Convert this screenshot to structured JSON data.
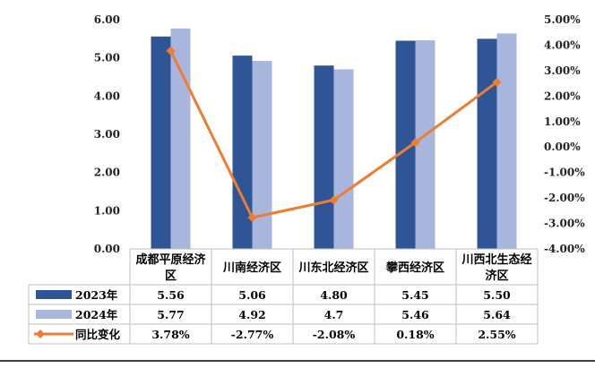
{
  "chart_data": {
    "type": "bar",
    "categories": [
      "成都平原经济区",
      "川南经济区",
      "川东北经济区",
      "攀西经济区",
      "川西北生态经济区"
    ],
    "series": [
      {
        "name": "2023年",
        "type": "bar",
        "axis": "left",
        "color": "#2F5597",
        "values": [
          5.56,
          5.06,
          4.8,
          5.45,
          5.5
        ],
        "value_labels": [
          "5.56",
          "5.06",
          "4.80",
          "5.45",
          "5.50"
        ]
      },
      {
        "name": "2024年",
        "type": "bar",
        "axis": "left",
        "color": "#A8B5DC",
        "values": [
          5.77,
          4.92,
          4.7,
          5.46,
          5.64
        ],
        "value_labels": [
          "5.77",
          "4.92",
          "4.7",
          "5.46",
          "5.64"
        ]
      },
      {
        "name": "同比变化",
        "type": "line",
        "axis": "right",
        "color": "#ED7D31",
        "values": [
          3.78,
          -2.77,
          -2.08,
          0.18,
          2.55
        ],
        "value_labels": [
          "3.78%",
          "-2.77%",
          "-2.08%",
          "0.18%",
          "2.55%"
        ]
      }
    ],
    "y_left": {
      "ylim": [
        0,
        6
      ],
      "ticks": [
        "0.00",
        "1.00",
        "2.00",
        "3.00",
        "4.00",
        "5.00",
        "6.00"
      ]
    },
    "y_right": {
      "ylim": [
        -4,
        5
      ],
      "ticks": [
        "-4.00%",
        "-3.00%",
        "-2.00%",
        "-1.00%",
        "0.00%",
        "1.00%",
        "2.00%",
        "3.00%",
        "4.00%",
        "5.00%"
      ]
    },
    "grid": false,
    "legend": "data-table"
  }
}
